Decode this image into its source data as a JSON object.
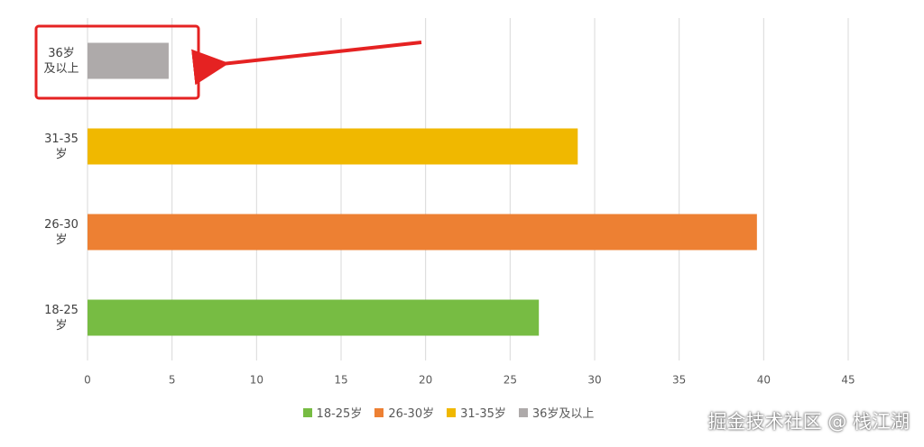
{
  "chart_data": {
    "type": "bar",
    "orientation": "horizontal",
    "categories": [
      "18-25岁",
      "26-30岁",
      "31-35岁",
      "36岁及以上"
    ],
    "values": [
      26.7,
      39.6,
      29,
      4.8
    ],
    "colors": [
      "#77bc43",
      "#ed8033",
      "#f0b800",
      "#aeaaaa"
    ],
    "xlim": [
      0,
      45
    ],
    "xticks": [
      0,
      5,
      10,
      15,
      20,
      25,
      30,
      35,
      40,
      45
    ],
    "grid": true,
    "legend": "bottom"
  },
  "watermark": "掘金技术社区 @ 栈江湖"
}
